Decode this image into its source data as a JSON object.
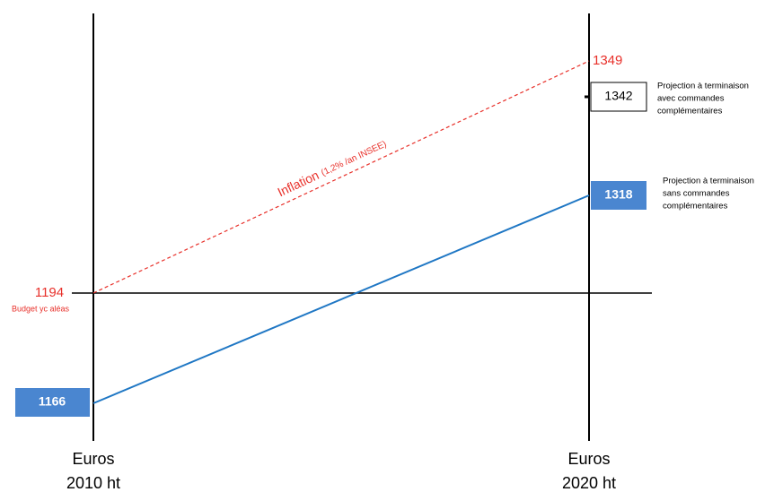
{
  "axes": [
    {
      "lines": [
        "Euros",
        "2010 ht"
      ]
    },
    {
      "lines": [
        "Euros",
        "2020 ht"
      ]
    }
  ],
  "baseline": {
    "value": 1194,
    "label": "Budget yc aléas"
  },
  "inflation": {
    "label": "Inflation",
    "note": "(1,2% /an INSEE)",
    "value": 1349
  },
  "start": {
    "value": 1166
  },
  "projections": [
    {
      "value": 1342,
      "lines": [
        "Projection à terminaison",
        "avec commandes",
        "complémentaires"
      ]
    },
    {
      "value": 1318,
      "lines": [
        "Projection à terminaison",
        "sans commandes",
        "complémentaires"
      ]
    }
  ]
}
